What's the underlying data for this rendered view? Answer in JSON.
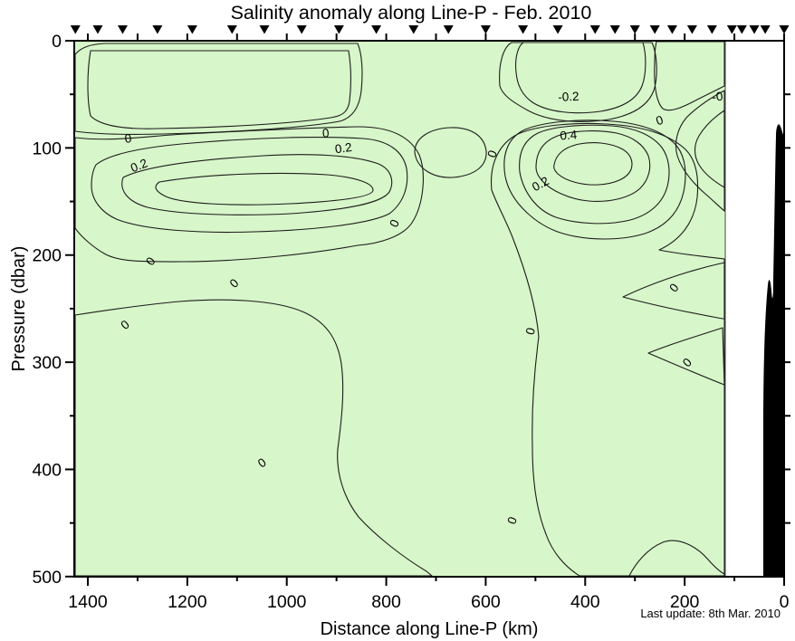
{
  "title": "Salinity anomaly along Line-P - Feb. 2010",
  "last_update": "Last update: 8th Mar. 2010",
  "chart_data": {
    "type": "heatmap",
    "subtype": "filled-contour-ocean-section",
    "title": "Salinity anomaly along Line-P - Feb. 2010",
    "xlabel": "Distance along Line-P (km)",
    "ylabel": "Pressure (dbar)",
    "xlim": [
      1430,
      0
    ],
    "x_axis_reversed": true,
    "ylim": [
      0,
      500
    ],
    "y_axis_increases_downward": true,
    "x_ticks_major": [
      1400,
      1200,
      1000,
      800,
      600,
      400,
      200,
      0
    ],
    "x_tick_minor_step_km": 100,
    "y_ticks_major": [
      0,
      100,
      200,
      300,
      400,
      500
    ],
    "y_tick_minor_step_dbar": 50,
    "contour_interval": 0.1,
    "contour_levels": [
      -0.2,
      -0.1,
      0,
      0.1,
      0.2,
      0.3,
      0.4
    ],
    "palette": {
      "neg_strong": "#8FE98A",
      "neg_mid": "#B3EFA2",
      "neg_light": "#D7F6C9",
      "neg_corner": "#E4F9DA",
      "pos1": "#FCFDE3",
      "pos2": "#FDF9D0",
      "pos3": "#FBF3AF",
      "pos4": "#F9EF9A",
      "pos5": "#FBF4A1",
      "bathymetry": "#000000",
      "no_data": "#FFFFFF",
      "contour_line": "#1C1C1C"
    },
    "stations_km": [
      1425,
      1380,
      1330,
      1260,
      1190,
      1110,
      1045,
      970,
      895,
      820,
      745,
      675,
      600,
      525,
      455,
      380,
      340,
      300,
      260,
      225,
      185,
      145,
      105,
      85,
      60,
      38,
      0
    ],
    "contour_labels": [
      {
        "text": "0",
        "km": 1318,
        "dbar": 95,
        "rot": -8
      },
      {
        "text": "0.2",
        "km": 1294,
        "dbar": 120,
        "rot": -22
      },
      {
        "text": "0",
        "km": 921,
        "dbar": 90,
        "rot": -5
      },
      {
        "text": "0.2",
        "km": 885,
        "dbar": 104,
        "rot": -8
      },
      {
        "text": "0",
        "km": 776,
        "dbar": 172,
        "rot": -65
      },
      {
        "text": "0",
        "km": 579,
        "dbar": 107,
        "rot": -70
      },
      {
        "text": "-0.2",
        "km": 433,
        "dbar": 56,
        "rot": -3
      },
      {
        "text": "0",
        "km": 248,
        "dbar": 78,
        "rot": -18
      },
      {
        "text": "-0",
        "km": 133,
        "dbar": 56,
        "rot": -8
      },
      {
        "text": "0.4",
        "km": 433,
        "dbar": 92,
        "rot": -4
      },
      {
        "text": "0.2",
        "km": 486,
        "dbar": 137,
        "rot": -28
      },
      {
        "text": "0",
        "km": 1267,
        "dbar": 208,
        "rot": -55
      },
      {
        "text": "0",
        "km": 1100,
        "dbar": 229,
        "rot": -45
      },
      {
        "text": "0",
        "km": 1320,
        "dbar": 268,
        "rot": -40
      },
      {
        "text": "0",
        "km": 502,
        "dbar": 272,
        "rot": -75
      },
      {
        "text": "0",
        "km": 215,
        "dbar": 233,
        "rot": -50
      },
      {
        "text": "0",
        "km": 189,
        "dbar": 303,
        "rot": -45
      },
      {
        "text": "0",
        "km": 1045,
        "dbar": 397,
        "rot": -35
      },
      {
        "text": "0",
        "km": 539,
        "dbar": 449,
        "rot": -70
      }
    ],
    "features": [
      {
        "name": "surface-negative-band",
        "description": "green negative anomaly layer",
        "depth_dbar": [
          0,
          80
        ],
        "min_value": -0.2
      },
      {
        "name": "offshore-positive-core",
        "center_km": 1100,
        "center_dbar": 125,
        "max_value": 0.3
      },
      {
        "name": "nearshore-positive-core",
        "center_km": 430,
        "center_dbar": 100,
        "max_value": 0.4
      },
      {
        "name": "coastal-bathymetry-silhouette",
        "km_range": [
          0,
          45
        ],
        "fill": "black"
      },
      {
        "name": "no-data-gap",
        "km_range": [
          45,
          118
        ],
        "fill": "white"
      }
    ]
  }
}
